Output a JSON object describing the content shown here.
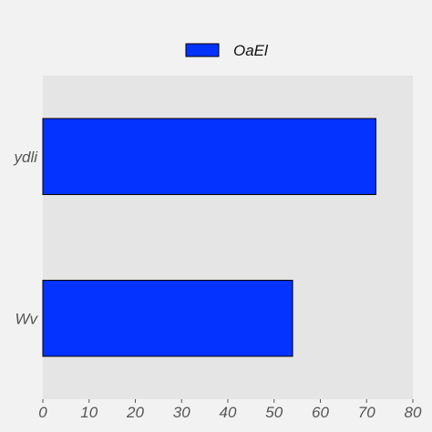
{
  "chart_data": {
    "type": "bar",
    "orientation": "horizontal",
    "title": "",
    "xlabel": "",
    "ylabel": "",
    "categories": [
      "ydli",
      "Wv"
    ],
    "series": [
      {
        "name": "OaEl",
        "values": [
          72,
          54
        ],
        "color": "#0433ff"
      }
    ],
    "xlim": [
      0,
      80
    ],
    "xticks": [
      0,
      10,
      20,
      30,
      40,
      50,
      60,
      70,
      80
    ],
    "grid": false,
    "legend": "top-center",
    "background": "#e5e5e5"
  }
}
